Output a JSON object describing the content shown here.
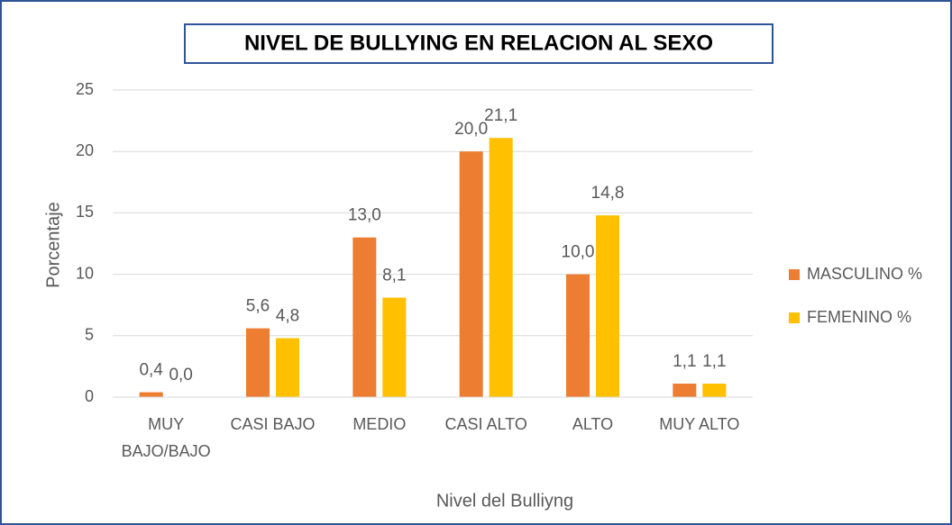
{
  "chart_data": {
    "type": "bar",
    "title": "NIVEL DE BULLYING EN RELACION AL SEXO",
    "x_label": "Nivel del Bulliyng",
    "y_label": "Porcentaje",
    "categories": [
      "MUY BAJO/BAJO",
      "CASI BAJO",
      "MEDIO",
      "CASI ALTO",
      "ALTO",
      "MUY ALTO"
    ],
    "series": [
      {
        "name": "MASCULINO %",
        "color": "#ed7d31",
        "values": [
          0.4,
          5.6,
          13.0,
          20.0,
          10.0,
          1.1
        ],
        "value_labels": [
          "0,4",
          "5,6",
          "13,0",
          "20,0",
          "10,0",
          "1,1"
        ]
      },
      {
        "name": "FEMENINO %",
        "color": "#ffc000",
        "values": [
          0.0,
          4.8,
          8.1,
          21.1,
          14.8,
          1.1
        ],
        "value_labels": [
          "0,0",
          "4,8",
          "8,1",
          "21,1",
          "14,8",
          "1,1"
        ]
      }
    ],
    "ylim": [
      0,
      25
    ],
    "yticks": [
      0,
      5,
      10,
      15,
      20,
      25
    ],
    "grid": true,
    "legend": "right"
  }
}
